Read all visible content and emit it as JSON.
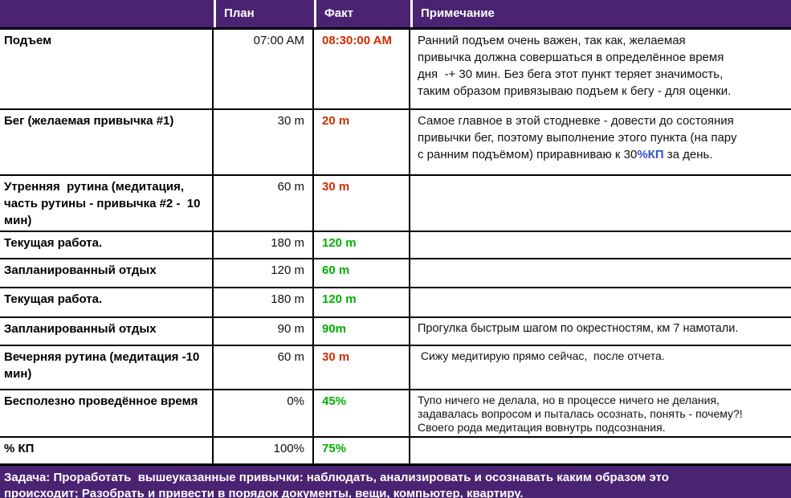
{
  "colors": {
    "header_bg": "#4a2373",
    "fact_bad": "#d02d00",
    "fact_good": "#00b000",
    "label_accent_blue": "#0000ff",
    "note_accent_blue": "#3355cc"
  },
  "table": {
    "columns": {
      "task": "",
      "plan": "План",
      "fact": "Факт",
      "note": "Примечание"
    },
    "rows": [
      {
        "name": "Подъем",
        "plan": "07:00 AM",
        "fact": "08:30:00 AM",
        "fact_color": "red",
        "note": "Ранний подъем очень важен, так как, желаемая\nпривычка должна совершаться в определённое время\nдня  -+ 30 мин. Без бега этот пункт теряет значимость,\nтаким образом привязываю подъем к бегу - для оценки."
      },
      {
        "name": "Бег (желаемая привычка #1)",
        "plan": "30 m",
        "fact": "20 m",
        "fact_color": "red",
        "note_rich": [
          {
            "text": "Самое главное в этой стодневке - довести до состояния\nпривычки бег, поэтому выполнение этого пункта (на пару\nс ранним подъёмом) приравниваю к 30",
            "style": "normal"
          },
          {
            "text": "%КП",
            "style": "blue"
          },
          {
            "text": " за день.",
            "style": "normal"
          }
        ]
      },
      {
        "name": "Утренняя  рутина (медитация,\nчасть рутины - привычка #2 -  10\nмин)",
        "plan": "60 m",
        "fact": "30 m",
        "fact_color": "red",
        "note": ""
      },
      {
        "name": "Текущая работа.",
        "plan": "180 m",
        "fact": "120 m",
        "fact_color": "green",
        "note": ""
      },
      {
        "name": "Запланированный отдых",
        "plan": "120 m",
        "fact": "60 m",
        "fact_color": "green",
        "note": ""
      },
      {
        "name": "Текущая работа.",
        "plan": "180 m",
        "fact": "120 m",
        "fact_color": "green",
        "note": ""
      },
      {
        "name": "Запланированный отдых",
        "plan": "90 m",
        "fact": "90m",
        "fact_color": "green",
        "note": "Прогулка быстрым шагом по окрестностям, км 7 намотали."
      },
      {
        "name": "Вечерняя рутина (медитация -10\nмин)",
        "plan": "60 m",
        "fact": "30 m",
        "fact_color": "red",
        "note": " Сижу медитирую прямо сейчас,  после отчета."
      },
      {
        "name": "Бесполезно проведённое время",
        "name_blue": true,
        "plan": "0%",
        "fact": "45%",
        "fact_color": "green",
        "note": "Тупо ничего не делала, но в процессе ничего не делания,\nзадавалась вопросом и пыталась осознать, понять - почему?!\nСвоего рода медитация вовнутрь подсознания."
      },
      {
        "name": "% КП",
        "name_blue": true,
        "plan": "100%",
        "fact": "75%",
        "fact_color": "green",
        "note": ""
      }
    ]
  },
  "footer": {
    "task_text": "Задача: Проработать  вышеуказанные привычки: наблюдать, анализировать и осознавать каким образом это\nпроисходит; Разобрать и привести в порядок документы, вещи, компьютер, квартиру."
  }
}
